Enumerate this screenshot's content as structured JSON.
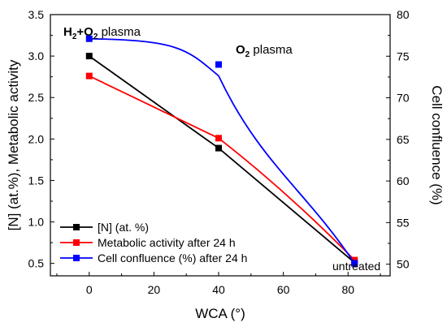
{
  "chart_data": {
    "type": "line",
    "xlabel": "WCA (°)",
    "ylabel_left": "[N] (at.%), Metabolic activity",
    "ylabel_right": "Cell confluence (%)",
    "xlim": [
      -12,
      93
    ],
    "ylim_left": [
      0.35,
      3.5
    ],
    "ylim_right": [
      48.6,
      80
    ],
    "x_ticks": [
      0,
      20,
      40,
      60,
      80
    ],
    "y_ticks_left": [
      0.5,
      1.0,
      1.5,
      2.0,
      2.5,
      3.0,
      3.5
    ],
    "y_ticks_right": [
      50,
      55,
      60,
      65,
      70,
      75,
      80
    ],
    "series": [
      {
        "name": "[N] (at. %)",
        "axis": "left",
        "color": "#000000",
        "x": [
          0,
          40,
          82
        ],
        "y": [
          3.0,
          1.89,
          0.51
        ]
      },
      {
        "name": "Metabolic activity after 24 h",
        "axis": "left",
        "color": "#ff0000",
        "x": [
          0,
          40,
          82
        ],
        "y": [
          2.76,
          2.01,
          0.54
        ]
      },
      {
        "name": "Cell confluence (%) after 24 h",
        "axis": "right",
        "color": "#0000ff",
        "x": [
          0,
          40,
          82
        ],
        "y": [
          77.1,
          74.0,
          50.1
        ]
      }
    ],
    "annotations": [
      {
        "main": "H",
        "sub1": "2",
        "mid": "+O",
        "sub2": "2",
        "tail": " plasma"
      },
      {
        "main": "O",
        "sub1": "2",
        "tail": " plasma"
      },
      {
        "text": "untreated"
      }
    ],
    "legend_position": "bottom-left",
    "grid": false
  }
}
